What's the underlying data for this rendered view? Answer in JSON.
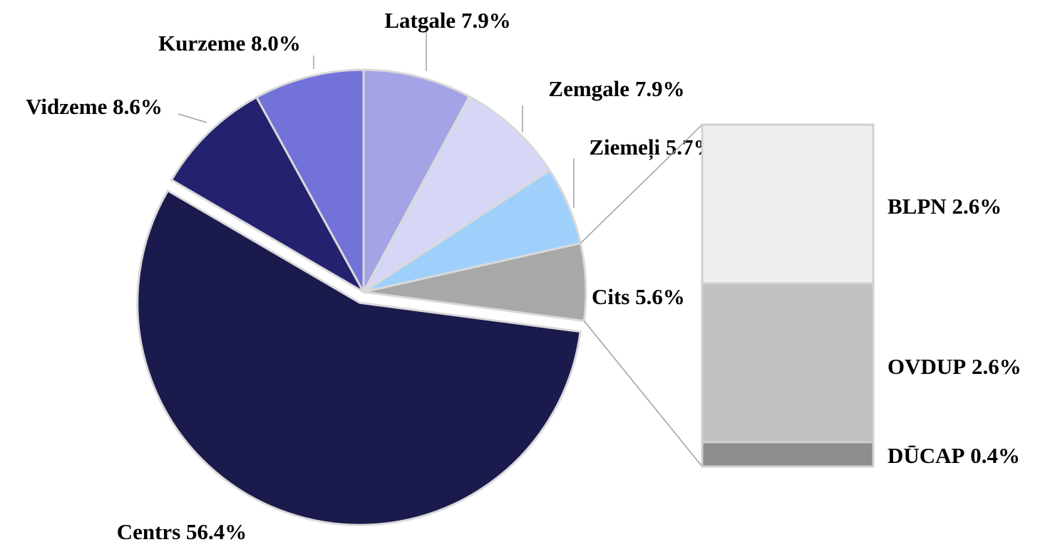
{
  "chart_data": {
    "type": "pie",
    "categories": [
      "Latgale",
      "Zemgale",
      "Ziemeļi",
      "Cits",
      "Centrs",
      "Vidzeme",
      "Kurzeme"
    ],
    "values": [
      7.9,
      7.9,
      5.7,
      5.6,
      56.4,
      8.6,
      8.0
    ],
    "value_labels": [
      "7.9%",
      "7.9%",
      "5.7%",
      "5.6%",
      "56.4%",
      "8.6%",
      "8.0%"
    ],
    "colors": [
      "#a3a3e6",
      "#d6d6f7",
      "#9fd0fb",
      "#a8a8a8",
      "#1b1a4c",
      "#24226e",
      "#7272d9"
    ],
    "breakdown": {
      "categories": [
        "DŪCAP",
        "OVDUP",
        "BLPN"
      ],
      "values": [
        0.4,
        2.6,
        2.6
      ],
      "value_labels": [
        "0.4%",
        "2.6%",
        "2.6%"
      ],
      "colors": [
        "#8e8e8e",
        "#c0c0c0",
        "#efefef"
      ]
    }
  }
}
